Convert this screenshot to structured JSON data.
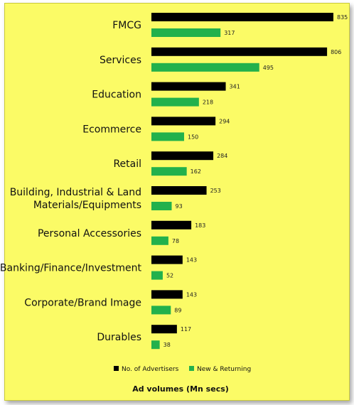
{
  "chart_data": {
    "type": "bar",
    "orientation": "horizontal",
    "categories": [
      [
        "FMCG"
      ],
      [
        "Services"
      ],
      [
        "Education"
      ],
      [
        "Ecommerce"
      ],
      [
        "Retail"
      ],
      [
        "Building, Industrial & Land",
        "Materials/Equipments"
      ],
      [
        "Personal Accessories"
      ],
      [
        "Banking/Finance/Investment"
      ],
      [
        "Corporate/Brand Image"
      ],
      [
        "Durables"
      ]
    ],
    "series": [
      {
        "name": "No. of Advertisers",
        "color": "#000000",
        "values": [
          835,
          806,
          341,
          294,
          284,
          253,
          183,
          143,
          143,
          117
        ]
      },
      {
        "name": "New & Returning",
        "color": "#22b14c",
        "values": [
          317,
          495,
          218,
          150,
          162,
          93,
          78,
          52,
          89,
          38
        ]
      }
    ],
    "xlabel": "Ad volumes (Mn secs)",
    "xlim": [
      0,
      835
    ],
    "legend": "bottom",
    "grid": false
  }
}
